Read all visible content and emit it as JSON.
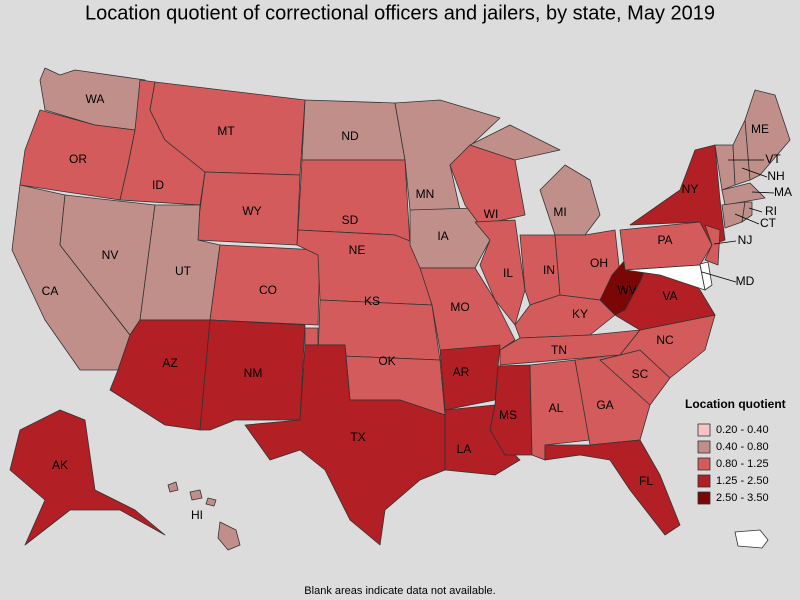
{
  "title": "Location quotient of correctional officers and jailers, by state, May 2019",
  "footnote": "Blank areas indicate data not available.",
  "legend": {
    "title": "Location quotient",
    "items": [
      {
        "label": "0.20 - 0.40",
        "color": "#f8c3c3"
      },
      {
        "label": "0.40 - 0.80",
        "color": "#c18f8a"
      },
      {
        "label": "0.80 - 1.25",
        "color": "#d45b5b"
      },
      {
        "label": "1.25 - 2.50",
        "color": "#b21f24"
      },
      {
        "label": "2.50 - 3.50",
        "color": "#7a0606"
      }
    ]
  },
  "states": [
    {
      "label": "WA",
      "color": "#c18f8a"
    },
    {
      "label": "OR",
      "color": "#d45b5b"
    },
    {
      "label": "CA",
      "color": "#c18f8a"
    },
    {
      "label": "NV",
      "color": "#c18f8a"
    },
    {
      "label": "ID",
      "color": "#d45b5b"
    },
    {
      "label": "MT",
      "color": "#d45b5b"
    },
    {
      "label": "WY",
      "color": "#d45b5b"
    },
    {
      "label": "UT",
      "color": "#c18f8a"
    },
    {
      "label": "CO",
      "color": "#d45b5b"
    },
    {
      "label": "AZ",
      "color": "#b21f24"
    },
    {
      "label": "NM",
      "color": "#b21f24"
    },
    {
      "label": "ND",
      "color": "#c18f8a"
    },
    {
      "label": "SD",
      "color": "#d45b5b"
    },
    {
      "label": "NE",
      "color": "#d45b5b"
    },
    {
      "label": "KS",
      "color": "#d45b5b"
    },
    {
      "label": "OK",
      "color": "#d45b5b"
    },
    {
      "label": "TX",
      "color": "#b21f24"
    },
    {
      "label": "MN",
      "color": "#c18f8a"
    },
    {
      "label": "IA",
      "color": "#c18f8a"
    },
    {
      "label": "MO",
      "color": "#d45b5b"
    },
    {
      "label": "AR",
      "color": "#b21f24"
    },
    {
      "label": "LA",
      "color": "#b21f24"
    },
    {
      "label": "WI",
      "color": "#d45b5b"
    },
    {
      "label": "IL",
      "color": "#d45b5b"
    },
    {
      "label": "MI",
      "color": "#c18f8a"
    },
    {
      "label": "IN",
      "color": "#d45b5b"
    },
    {
      "label": "OH",
      "color": "#d45b5b"
    },
    {
      "label": "KY",
      "color": "#d45b5b"
    },
    {
      "label": "TN",
      "color": "#d45b5b"
    },
    {
      "label": "MS",
      "color": "#b21f24"
    },
    {
      "label": "AL",
      "color": "#d45b5b"
    },
    {
      "label": "GA",
      "color": "#d45b5b"
    },
    {
      "label": "FL",
      "color": "#b21f24"
    },
    {
      "label": "SC",
      "color": "#d45b5b"
    },
    {
      "label": "NC",
      "color": "#d45b5b"
    },
    {
      "label": "VA",
      "color": "#b21f24"
    },
    {
      "label": "WV",
      "color": "#7a0606"
    },
    {
      "label": "PA",
      "color": "#d45b5b"
    },
    {
      "label": "NY",
      "color": "#b21f24"
    },
    {
      "label": "NJ",
      "color": "#d45b5b"
    },
    {
      "label": "MD",
      "color": "#ffffff"
    },
    {
      "label": "VT",
      "color": "#c18f8a"
    },
    {
      "label": "NH",
      "color": "#c18f8a"
    },
    {
      "label": "ME",
      "color": "#c18f8a"
    },
    {
      "label": "MA",
      "color": "#c18f8a"
    },
    {
      "label": "CT",
      "color": "#c18f8a"
    },
    {
      "label": "RI",
      "color": "#c18f8a"
    },
    {
      "label": "AK",
      "color": "#b21f24"
    },
    {
      "label": "HI",
      "color": "#c18f8a"
    }
  ]
}
